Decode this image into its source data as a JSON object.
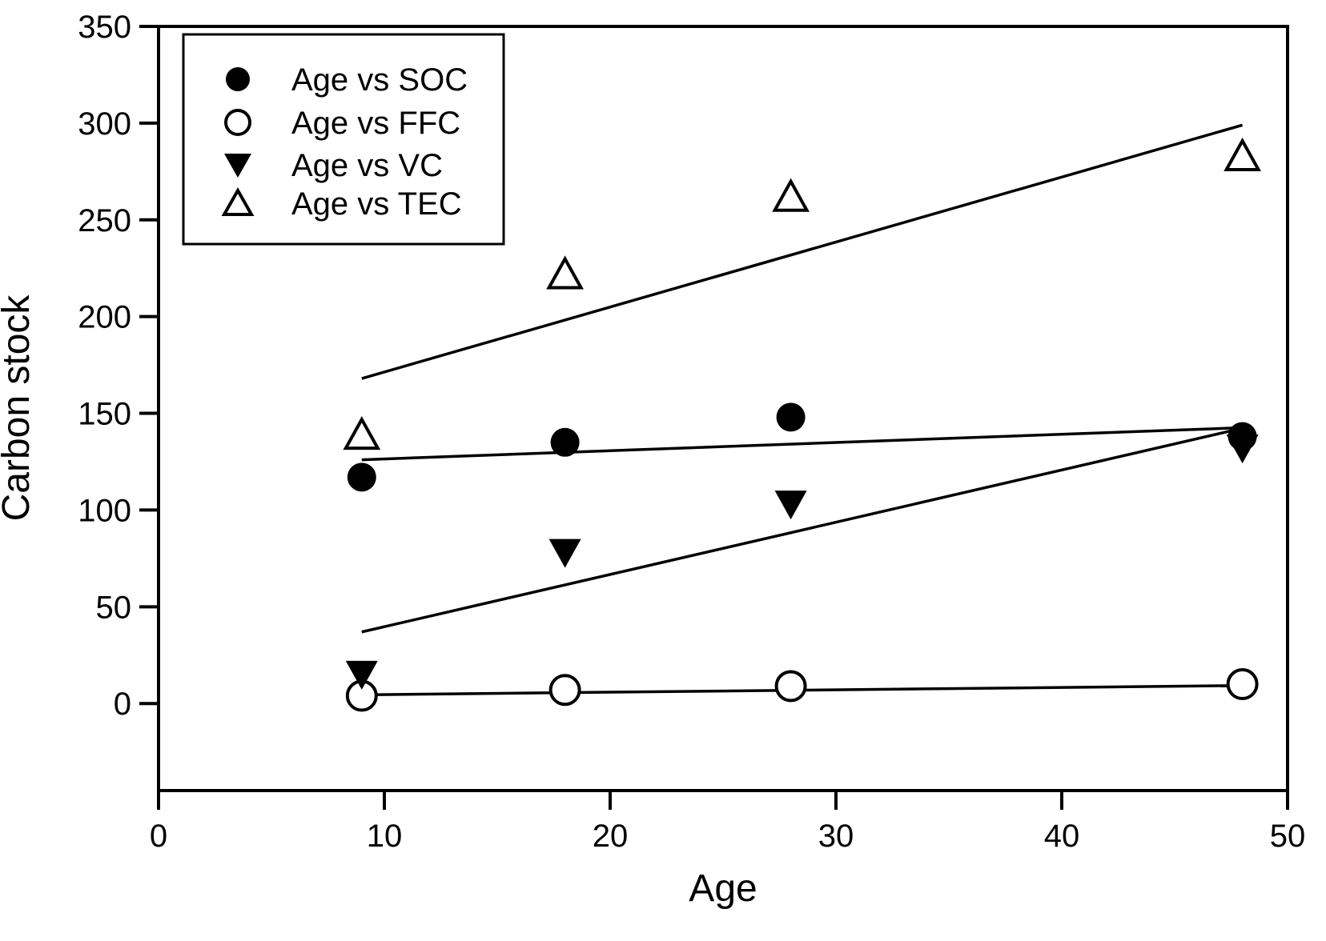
{
  "figure": {
    "background": "#ffffff",
    "ink": "#000000"
  },
  "chart_data": {
    "type": "scatter",
    "title": "",
    "xlabel": "Age",
    "ylabel": "Carbon stock",
    "xlim": [
      0,
      50
    ],
    "ylim": [
      -45,
      350
    ],
    "x_ticks": [
      0,
      10,
      20,
      30,
      40,
      50
    ],
    "y_ticks": [
      0,
      50,
      100,
      150,
      200,
      250,
      300,
      350
    ],
    "grid": false,
    "frame": "full-box",
    "legend_position": "top-left",
    "series": [
      {
        "name": "Age vs SOC",
        "marker": "circle-filled",
        "x": [
          9,
          18,
          28,
          48
        ],
        "y": [
          117,
          135,
          148,
          138
        ],
        "trend": {
          "x1": 9,
          "y1": 126,
          "x2": 47.8,
          "y2": 142.5
        }
      },
      {
        "name": "Age vs FFC",
        "marker": "circle-open",
        "x": [
          9,
          18,
          28,
          48
        ],
        "y": [
          4,
          7,
          9,
          10
        ],
        "trend": {
          "x1": 9,
          "y1": 4.5,
          "x2": 47.3,
          "y2": 9.2
        }
      },
      {
        "name": "Age vs VC",
        "marker": "triangle-down-filled",
        "x": [
          9,
          18,
          28,
          48
        ],
        "y": [
          15,
          78,
          103,
          132
        ],
        "trend": {
          "x1": 9,
          "y1": 37,
          "x2": 47.7,
          "y2": 141.5
        }
      },
      {
        "name": "Age vs TEC",
        "marker": "triangle-up-open",
        "x": [
          9,
          18,
          28,
          48
        ],
        "y": [
          139,
          222,
          262,
          283
        ],
        "trend": {
          "x1": 9,
          "y1": 168,
          "x2": 48,
          "y2": 299
        }
      }
    ]
  }
}
